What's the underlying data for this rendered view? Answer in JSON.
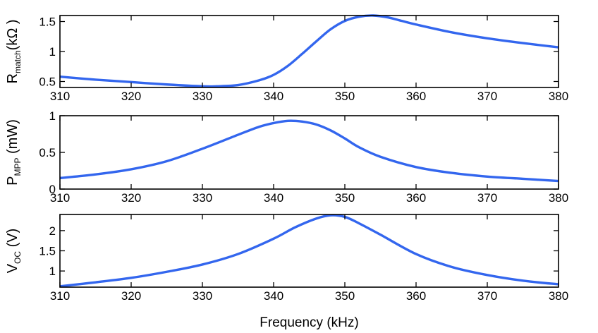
{
  "chart_data": [
    {
      "type": "line",
      "ylabel": {
        "main": "R",
        "sub": "match",
        "rest": "(kΩ )"
      },
      "xlabel": "",
      "xlim": [
        310,
        380
      ],
      "ylim": [
        0.4,
        1.6
      ],
      "xticks": [
        310,
        320,
        330,
        340,
        350,
        360,
        370,
        380
      ],
      "xtick_labels": [
        "310",
        "320",
        "330",
        "340",
        "350",
        "360",
        "370",
        "380"
      ],
      "yticks": [
        0.5,
        1,
        1.5
      ],
      "ytick_labels": [
        "0.5",
        "1",
        "1.5"
      ],
      "grid": false,
      "color": "#3366ee",
      "x": [
        310,
        315,
        320,
        325,
        330,
        332,
        335,
        338,
        340,
        342,
        344,
        346,
        348,
        350,
        352,
        354,
        356,
        358,
        360,
        365,
        370,
        375,
        380
      ],
      "y": [
        0.58,
        0.53,
        0.49,
        0.45,
        0.42,
        0.42,
        0.44,
        0.52,
        0.61,
        0.76,
        0.96,
        1.17,
        1.37,
        1.51,
        1.58,
        1.6,
        1.57,
        1.51,
        1.45,
        1.32,
        1.22,
        1.14,
        1.07
      ]
    },
    {
      "type": "line",
      "ylabel": {
        "main": "P",
        "sub": "MPP",
        "rest": " (mW)"
      },
      "xlabel": "",
      "xlim": [
        310,
        380
      ],
      "ylim": [
        0,
        1
      ],
      "xticks": [
        310,
        320,
        330,
        340,
        350,
        360,
        370,
        380
      ],
      "xtick_labels": [
        "310",
        "320",
        "330",
        "340",
        "350",
        "360",
        "370",
        "380"
      ],
      "yticks": [
        0,
        0.5,
        1
      ],
      "ytick_labels": [
        "0",
        "0.5",
        "1"
      ],
      "grid": false,
      "color": "#3366ee",
      "x": [
        310,
        315,
        320,
        325,
        330,
        335,
        338,
        340,
        342,
        344,
        346,
        348,
        350,
        352,
        355,
        360,
        365,
        370,
        375,
        380
      ],
      "y": [
        0.15,
        0.2,
        0.27,
        0.38,
        0.55,
        0.74,
        0.85,
        0.9,
        0.93,
        0.92,
        0.88,
        0.8,
        0.69,
        0.57,
        0.44,
        0.3,
        0.22,
        0.17,
        0.14,
        0.11
      ]
    },
    {
      "type": "line",
      "ylabel": {
        "main": "V",
        "sub": "OC",
        "rest": " (V)"
      },
      "xlabel": "Frequency (kHz)",
      "xlim": [
        310,
        380
      ],
      "ylim": [
        0.6,
        2.4
      ],
      "xticks": [
        310,
        320,
        330,
        340,
        350,
        360,
        370,
        380
      ],
      "xtick_labels": [
        "310",
        "320",
        "330",
        "340",
        "350",
        "360",
        "370",
        "380"
      ],
      "yticks": [
        1,
        1.5,
        2
      ],
      "ytick_labels": [
        "1",
        "1.5",
        "2"
      ],
      "grid": false,
      "color": "#3366ee",
      "x": [
        310,
        315,
        320,
        325,
        330,
        335,
        340,
        343,
        346,
        348,
        350,
        352,
        355,
        360,
        365,
        370,
        375,
        380
      ],
      "y": [
        0.62,
        0.72,
        0.83,
        0.98,
        1.16,
        1.42,
        1.8,
        2.08,
        2.3,
        2.38,
        2.34,
        2.18,
        1.9,
        1.42,
        1.1,
        0.9,
        0.76,
        0.67
      ]
    }
  ]
}
